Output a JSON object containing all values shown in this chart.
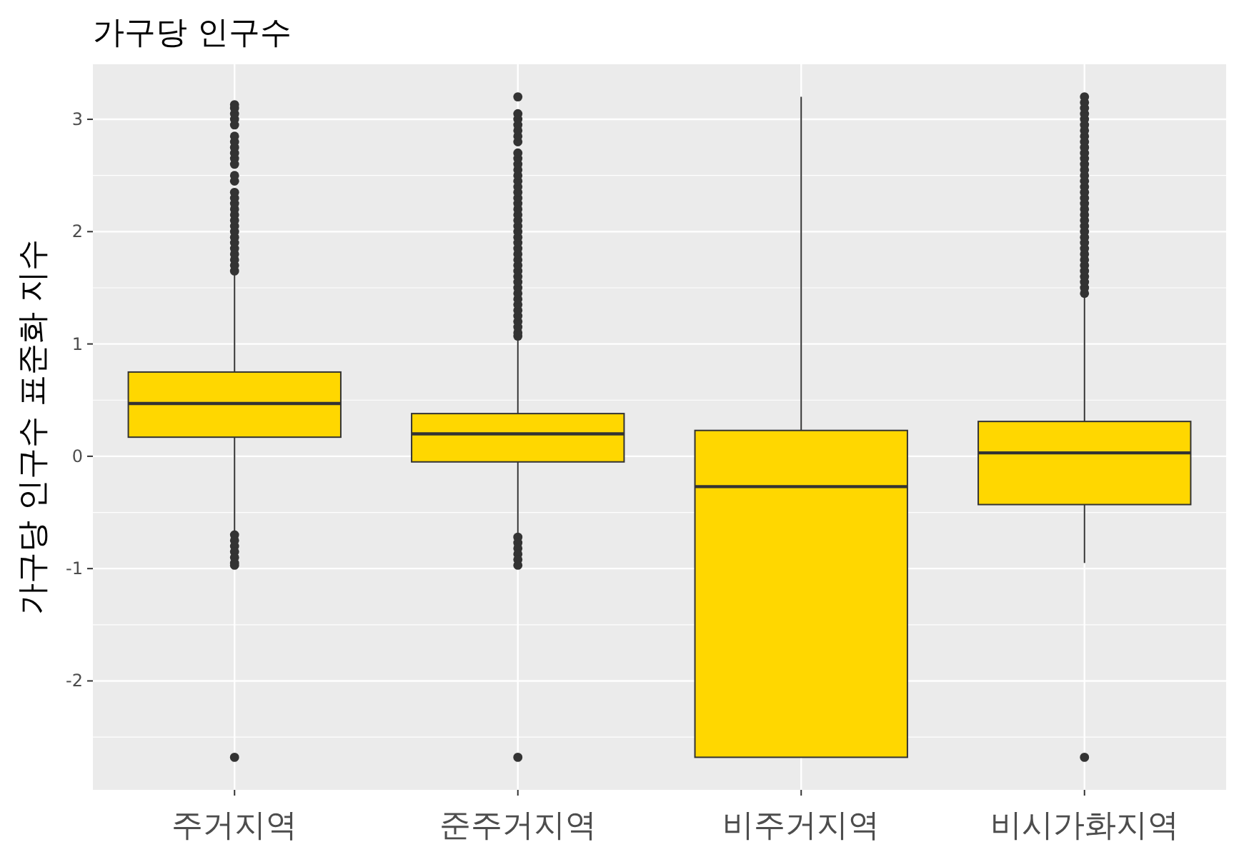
{
  "chart_data": {
    "type": "box",
    "title": "가구당 인구수",
    "ylabel": "가구당 인구수 표준화 지수",
    "categories": [
      "주거지역",
      "준주거지역",
      "비주거지역",
      "비시가화지역"
    ],
    "color": "#ffd700",
    "ylim": [
      -2.97,
      3.49
    ],
    "yticks": [
      -2,
      -1,
      0,
      1,
      2,
      3
    ],
    "grid": true,
    "boxes": [
      {
        "low": -0.68,
        "q1": 0.17,
        "median": 0.47,
        "q3": 0.75,
        "high": 1.62,
        "outliers": [
          1.65,
          1.7,
          1.75,
          1.8,
          1.85,
          1.9,
          1.95,
          2.0,
          2.05,
          2.1,
          2.15,
          2.2,
          2.25,
          2.3,
          2.35,
          2.45,
          2.5,
          2.6,
          2.65,
          2.7,
          2.75,
          2.8,
          2.85,
          2.95,
          3.0,
          3.05,
          3.1,
          3.13,
          -0.7,
          -0.75,
          -0.8,
          -0.85,
          -0.9,
          -0.95,
          -0.97,
          -2.68
        ]
      },
      {
        "low": -0.7,
        "q1": -0.05,
        "median": 0.2,
        "q3": 0.38,
        "high": 1.04,
        "outliers": [
          1.07,
          1.1,
          1.15,
          1.2,
          1.25,
          1.3,
          1.35,
          1.4,
          1.45,
          1.5,
          1.55,
          1.6,
          1.65,
          1.7,
          1.75,
          1.8,
          1.85,
          1.9,
          1.95,
          2.0,
          2.05,
          2.1,
          2.15,
          2.2,
          2.25,
          2.3,
          2.35,
          2.4,
          2.45,
          2.5,
          2.55,
          2.6,
          2.65,
          2.7,
          2.8,
          2.85,
          2.9,
          2.95,
          3.0,
          3.05,
          3.2,
          -0.72,
          -0.77,
          -0.82,
          -0.87,
          -0.92,
          -0.97,
          -2.68
        ]
      },
      {
        "low": -2.68,
        "q1": -2.68,
        "median": -0.27,
        "q3": 0.23,
        "high": 3.2
      },
      {
        "low": -0.95,
        "q1": -0.43,
        "median": 0.03,
        "q3": 0.31,
        "high": 1.42,
        "outliers": [
          1.45,
          1.5,
          1.55,
          1.6,
          1.65,
          1.7,
          1.75,
          1.8,
          1.85,
          1.9,
          1.95,
          2.0,
          2.05,
          2.1,
          2.15,
          2.2,
          2.25,
          2.3,
          2.35,
          2.4,
          2.45,
          2.5,
          2.55,
          2.6,
          2.65,
          2.7,
          2.75,
          2.8,
          2.85,
          2.9,
          2.95,
          3.0,
          3.05,
          3.1,
          3.15,
          3.2,
          -2.68
        ]
      }
    ]
  }
}
